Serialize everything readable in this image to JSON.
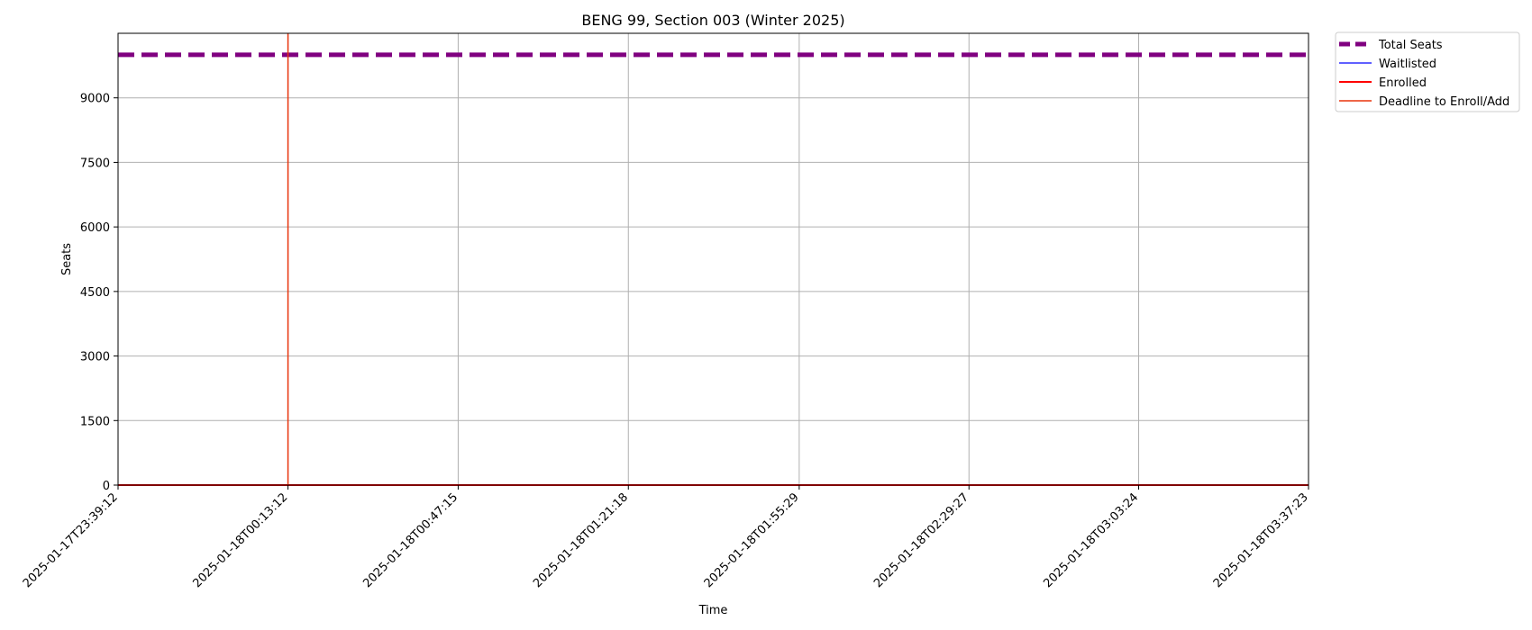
{
  "chart_data": {
    "type": "line",
    "title": "BENG 99, Section 003 (Winter 2025)",
    "xlabel": "Time",
    "ylabel": "Seats",
    "x_ticks": [
      "2025-01-17T23:39:12",
      "2025-01-18T00:13:12",
      "2025-01-18T00:47:15",
      "2025-01-18T01:21:18",
      "2025-01-18T01:55:29",
      "2025-01-18T02:29:27",
      "2025-01-18T03:03:24",
      "2025-01-18T03:37:23"
    ],
    "xlim": [
      "2025-01-17T23:39:12",
      "2025-01-18T03:37:23"
    ],
    "y_ticks": [
      0,
      1500,
      3000,
      4500,
      6000,
      7500,
      9000
    ],
    "ylim": [
      0,
      10500
    ],
    "grid": true,
    "legend_position": "outside-top-right",
    "series": [
      {
        "name": "Total Seats",
        "color": "#800080",
        "style": "dashed",
        "x": [
          "2025-01-17T23:39:12",
          "2025-01-18T03:37:23"
        ],
        "values": [
          10000,
          10000
        ]
      },
      {
        "name": "Waitlisted",
        "color": "#0000ff",
        "style": "solid",
        "x": [
          "2025-01-17T23:39:12",
          "2025-01-18T03:37:23"
        ],
        "values": [
          0,
          0
        ]
      },
      {
        "name": "Enrolled",
        "color": "#ff0000",
        "style": "solid",
        "x": [
          "2025-01-17T23:39:12",
          "2025-01-18T03:37:23"
        ],
        "values": [
          0,
          0
        ]
      }
    ],
    "vlines": [
      {
        "name": "Deadline to Enroll/Add",
        "color": "#e8340c",
        "x": "2025-01-18T00:13:12"
      }
    ]
  }
}
